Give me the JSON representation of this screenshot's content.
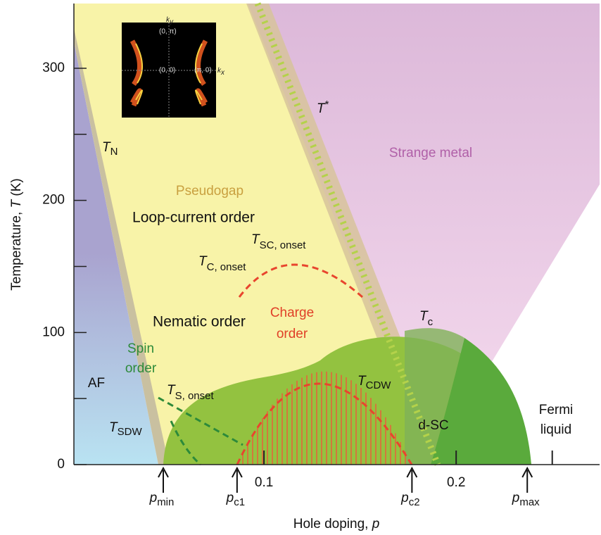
{
  "chart_data": {
    "type": "phase-diagram",
    "x_label": {
      "text": "Hole doping, ",
      "var": "p"
    },
    "y_label": {
      "text": "Temperature, ",
      "var": "T",
      "unit": " (K)"
    },
    "xlim": [
      0,
      0.275
    ],
    "ylim": [
      0,
      349
    ],
    "xticks": [
      0.1,
      0.2
    ],
    "minor_xticks": [
      0.25
    ],
    "yticks": [
      0,
      100,
      200,
      300
    ],
    "minor_yticks": [
      50,
      150,
      250
    ],
    "doping_markers": [
      {
        "x": 0.0476,
        "label": {
          "main": "p",
          "sub": "min"
        }
      },
      {
        "x": 0.086,
        "label": {
          "main": "p",
          "sub": "c1"
        }
      },
      {
        "x": 0.177,
        "label": {
          "main": "p",
          "sub": "c2"
        }
      },
      {
        "x": 0.237,
        "label": {
          "main": "p",
          "sub": "max"
        }
      }
    ],
    "region_labels": {
      "pseudogap": "Pseudogap",
      "loop_current": "Loop-current order",
      "nematic": "Nematic order",
      "charge": [
        "Charge",
        "order"
      ],
      "spin": [
        "Spin",
        "order"
      ],
      "af": "AF",
      "dsc": "d-SC",
      "fermi": [
        "Fermi",
        "liquid"
      ],
      "strange": "Strange metal"
    },
    "line_labels": {
      "tn": {
        "main": "T",
        "sub": "N"
      },
      "tstar": {
        "main": "T",
        "sup": "*"
      },
      "tsc_onset": {
        "main": "T",
        "sub": "SC, onset"
      },
      "tc_onset": {
        "main": "T",
        "sub": "C, onset"
      },
      "ts_onset": {
        "main": "T",
        "sub": "S, onset"
      },
      "tsdw": {
        "main": "T",
        "sub": "SDW"
      },
      "tc": {
        "main": "T",
        "sub": "c"
      },
      "tcdw": {
        "main": "T",
        "sub": "CDW"
      }
    },
    "inset": {
      "ky": "k",
      "ky_sub": "y",
      "kx": "k",
      "kx_sub": "x",
      "p1": "(0, π)",
      "p2": "(0, 0)",
      "p3": "(π, 0)"
    }
  }
}
